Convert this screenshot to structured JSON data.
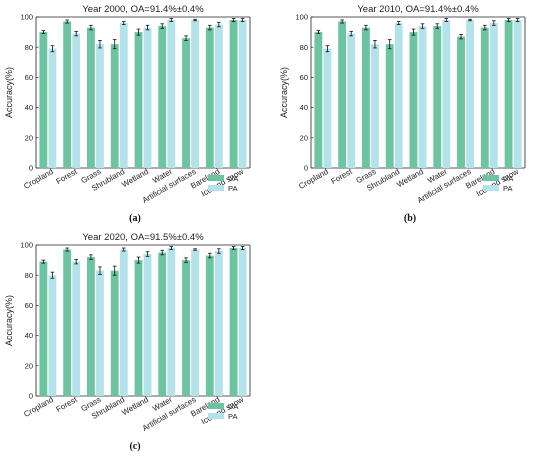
{
  "colors": {
    "ua": "#6cc4a0",
    "pa": "#b4e2ea",
    "error": "#111111",
    "axis": "#222222"
  },
  "legend": [
    "UA",
    "PA"
  ],
  "chart_data": [
    {
      "type": "bar",
      "title": "Year 2000, OA=91.4%±0.4%",
      "caption": "(a)",
      "ylabel": "Accuracy(%)",
      "ylim": [
        0,
        100
      ],
      "yticks": [
        0,
        20,
        40,
        60,
        80,
        100
      ],
      "categories": [
        "Cropland",
        "Forest",
        "Grass",
        "Shrubland",
        "Wetland",
        "Water",
        "Artificial surfaces",
        "Bareland",
        "Ice and snow"
      ],
      "series": [
        {
          "name": "UA",
          "values": [
            90,
            97,
            93,
            82,
            90,
            94,
            86,
            93,
            98
          ],
          "errors": [
            1,
            1,
            1.5,
            3,
            2,
            1.5,
            1.5,
            1.5,
            1
          ]
        },
        {
          "name": "PA",
          "values": [
            79,
            89,
            82,
            96,
            93,
            98,
            98,
            95,
            98
          ],
          "errors": [
            2,
            1.5,
            2.5,
            1,
            1.5,
            1,
            0.5,
            1.5,
            1
          ]
        }
      ]
    },
    {
      "type": "bar",
      "title": "Year 2010, OA=91.4%±0.4%",
      "caption": "(b)",
      "ylabel": "Accuracy(%)",
      "ylim": [
        0,
        100
      ],
      "yticks": [
        0,
        20,
        40,
        60,
        80,
        100
      ],
      "categories": [
        "Cropland",
        "Forest",
        "Grass",
        "Shrubland",
        "Wetland",
        "Water",
        "Artificial surfaces",
        "Bareland",
        "Ice and snow"
      ],
      "series": [
        {
          "name": "UA",
          "values": [
            90,
            97,
            93,
            82,
            90,
            94,
            87,
            93,
            98
          ],
          "errors": [
            1,
            1,
            1.5,
            3,
            2,
            1.5,
            1.5,
            1.5,
            1
          ]
        },
        {
          "name": "PA",
          "values": [
            79,
            89,
            82,
            96,
            94,
            98,
            98,
            96,
            98
          ],
          "errors": [
            2,
            1.5,
            2.5,
            1,
            1.5,
            1,
            0.5,
            1.5,
            1
          ]
        }
      ]
    },
    {
      "type": "bar",
      "title": "Year 2020, OA=91.5%±0.4%",
      "caption": "(c)",
      "ylabel": "Accuracy(%)",
      "ylim": [
        0,
        100
      ],
      "yticks": [
        0,
        20,
        40,
        60,
        80,
        100
      ],
      "categories": [
        "Cropland",
        "Forest",
        "Grass",
        "Shrubland",
        "Wetland",
        "Water",
        "Artificial surfaces",
        "Bareland",
        "Ice and snow"
      ],
      "series": [
        {
          "name": "UA",
          "values": [
            89,
            97,
            92,
            83,
            90,
            95,
            90,
            93,
            98
          ],
          "errors": [
            1,
            1,
            1.5,
            3,
            2,
            1.5,
            1.5,
            1.5,
            1
          ]
        },
        {
          "name": "PA",
          "values": [
            80,
            89,
            83,
            97,
            94,
            98,
            97,
            96,
            98
          ],
          "errors": [
            2,
            1.5,
            2.5,
            1,
            1.5,
            1,
            0.5,
            1.5,
            1
          ]
        }
      ]
    }
  ]
}
